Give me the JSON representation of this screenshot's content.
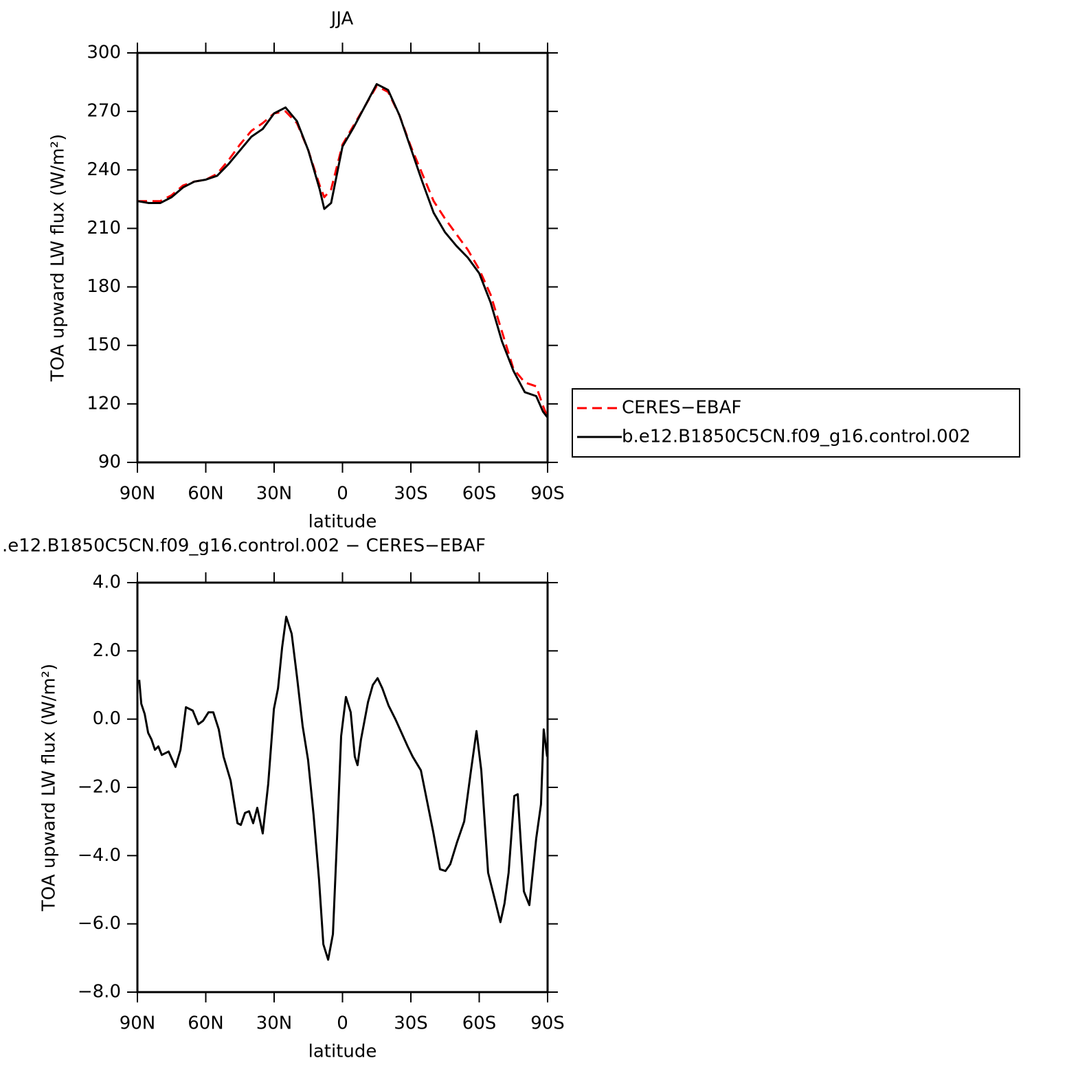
{
  "chart_data": [
    {
      "type": "line",
      "title": "JJA",
      "xlabel": "latitude",
      "ylabel": "TOA upward LW flux (W/m²)",
      "x": [
        90,
        85,
        80,
        75,
        70,
        65,
        60,
        55,
        50,
        45,
        40,
        35,
        30,
        25,
        20,
        15,
        10,
        8,
        5,
        0,
        -5,
        -10,
        -15,
        -20,
        -25,
        -30,
        -35,
        -40,
        -45,
        -50,
        -55,
        -60,
        -65,
        -70,
        -75,
        -80,
        -85,
        -88,
        -90
      ],
      "series": [
        {
          "name": "CERES−EBAF",
          "color": "#ff0000",
          "linestyle": "dashed",
          "values": [
            224,
            224,
            224,
            227,
            232,
            234,
            235,
            238,
            245,
            253,
            260,
            264,
            269,
            270,
            264,
            250,
            232,
            226,
            230,
            253,
            263,
            273,
            283,
            280,
            268,
            252,
            238,
            224,
            215,
            207,
            199,
            189,
            176,
            157,
            138,
            131,
            129,
            119,
            113
          ]
        },
        {
          "name": "b.e12.B1850C5CN.f09_g16.control.002",
          "color": "#000000",
          "linestyle": "solid",
          "values": [
            224,
            223,
            223,
            226,
            231,
            234,
            235,
            237,
            243,
            250,
            257,
            261,
            269,
            272,
            265,
            250,
            230,
            220,
            223,
            252,
            262,
            273,
            284,
            281,
            268,
            251,
            234,
            218,
            208,
            201,
            195,
            187,
            172,
            152,
            137,
            126,
            124,
            116,
            113
          ]
        }
      ],
      "xlim": [
        90,
        -90
      ],
      "xticks": [
        {
          "value": 90,
          "label": "90N"
        },
        {
          "value": 60,
          "label": "60N"
        },
        {
          "value": 30,
          "label": "30N"
        },
        0,
        {
          "value": -30,
          "label": "30S"
        },
        {
          "value": -60,
          "label": "60S"
        },
        {
          "value": -90,
          "label": "90S"
        }
      ],
      "ylim": [
        90,
        300
      ],
      "yticks": [
        90,
        120,
        150,
        180,
        210,
        240,
        270,
        300
      ],
      "legend": "right"
    },
    {
      "type": "line",
      "title": ".e12.B1850C5CN.f09_g16.control.002 − CERES−EBAF",
      "xlabel": "latitude",
      "ylabel": "TOA upward LW flux (W/m²)",
      "x": [
        89.2,
        88.3,
        86.8,
        85.3,
        83.8,
        82.3,
        80.8,
        79.3,
        77.8,
        76.3,
        73.3,
        71.1,
        68.7,
        65.7,
        63.3,
        61.2,
        58.8,
        56.7,
        54.3,
        52.2,
        49.1,
        46.1,
        44.6,
        42.8,
        41,
        39.2,
        37.4,
        35,
        32.6,
        30.1,
        28.3,
        26.5,
        24.7,
        22.3,
        19.9,
        17.5,
        15.1,
        12.7,
        10.3,
        8.4,
        6.3,
        4.2,
        2.4,
        0.6,
        -1.5,
        -3.6,
        -5.4,
        -6.6,
        -8.1,
        -11.2,
        -13.3,
        -15.4,
        -17.5,
        -20.2,
        -23.2,
        -28.6,
        -30.8,
        -34.4,
        -39.8,
        -42.8,
        -45.2,
        -47.3,
        -50.3,
        -53.4,
        -56.4,
        -58.8,
        -60.9,
        -63.9,
        -66.9,
        -69.3,
        -71.1,
        -72.9,
        -75.4,
        -76.9,
        -79.6,
        -82,
        -85,
        -87.1,
        -88.3,
        -89.8
      ],
      "series": [
        {
          "color": "#000000",
          "linestyle": "solid",
          "values": [
            1.15,
            0.45,
            0.15,
            -0.4,
            -0.6,
            -0.9,
            -0.8,
            -1.05,
            -1.0,
            -0.95,
            -1.4,
            -0.9,
            0.35,
            0.25,
            -0.15,
            -0.05,
            0.2,
            0.2,
            -0.3,
            -1.1,
            -1.8,
            -3.05,
            -3.1,
            -2.75,
            -2.7,
            -3.05,
            -2.6,
            -3.35,
            -1.9,
            0.3,
            0.9,
            2.1,
            3.0,
            2.5,
            1.2,
            -0.2,
            -1.2,
            -2.8,
            -4.7,
            -6.6,
            -7.05,
            -6.3,
            -3.5,
            -0.5,
            0.65,
            0.2,
            -1.1,
            -1.35,
            -0.6,
            0.5,
            1.0,
            1.2,
            0.9,
            0.4,
            0.0,
            -0.8,
            -1.1,
            -1.5,
            -3.3,
            -4.4,
            -4.45,
            -4.25,
            -3.6,
            -3.0,
            -1.5,
            -0.35,
            -1.5,
            -4.5,
            -5.3,
            -5.95,
            -5.4,
            -4.5,
            -2.25,
            -2.2,
            -5.05,
            -5.45,
            -3.5,
            -2.5,
            -0.3,
            -1.1
          ]
        }
      ],
      "xlim": [
        90,
        -90
      ],
      "xticks": [
        {
          "value": 90,
          "label": "90N"
        },
        {
          "value": 60,
          "label": "60N"
        },
        {
          "value": 30,
          "label": "30N"
        },
        0,
        {
          "value": -30,
          "label": "30S"
        },
        {
          "value": -60,
          "label": "60S"
        },
        {
          "value": -90,
          "label": "90S"
        }
      ],
      "ylim": [
        -8,
        4
      ],
      "yticks": [
        {
          "value": -8,
          "label": "−8.0"
        },
        {
          "value": -6,
          "label": "−6.0"
        },
        {
          "value": -4,
          "label": "−4.0"
        },
        {
          "value": -2,
          "label": "−2.0"
        },
        {
          "value": 0,
          "label": "0.0"
        },
        {
          "value": 2,
          "label": "2.0"
        },
        {
          "value": 4,
          "label": "4.0"
        }
      ]
    }
  ]
}
